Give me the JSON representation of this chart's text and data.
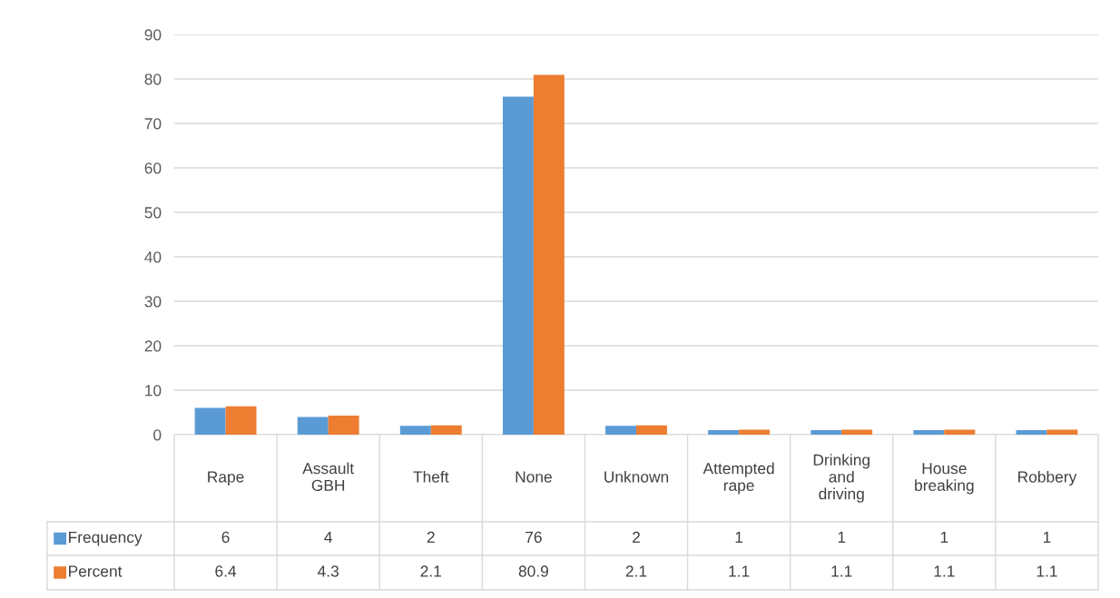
{
  "chart_data": {
    "type": "bar",
    "categories": [
      "Rape",
      "Assault GBH",
      "Theft",
      "None",
      "Unknown",
      "Attempted rape",
      "Drinking and driving",
      "House breaking",
      "Robbery"
    ],
    "series": [
      {
        "name": "Frequency",
        "color": "#5b9bd5",
        "values": [
          6,
          4,
          2,
          76,
          2,
          1,
          1,
          1,
          1
        ]
      },
      {
        "name": "Percent",
        "color": "#ed7d31",
        "values": [
          6.4,
          4.3,
          2.1,
          80.9,
          2.1,
          1.1,
          1.1,
          1.1,
          1.1
        ]
      }
    ],
    "ylim": [
      0,
      90
    ],
    "yticks": [
      0,
      10,
      20,
      30,
      40,
      50,
      60,
      70,
      80,
      90
    ],
    "grid": "y",
    "data_labels": true,
    "legend": "bottom"
  }
}
